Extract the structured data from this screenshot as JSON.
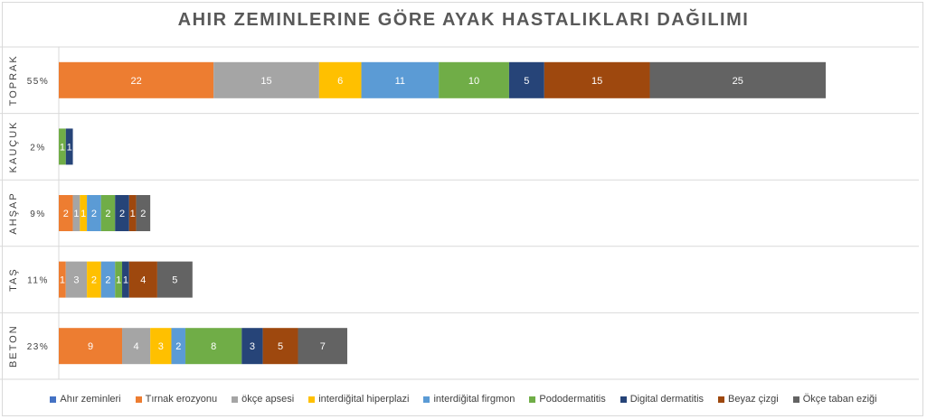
{
  "chart_data": {
    "type": "bar",
    "orientation": "horizontal",
    "stacked": true,
    "title": "AHIR ZEMINLERINE GÖRE AYAK HASTALIKLARI DAĞILIMI",
    "categories": [
      "TOPRAK",
      "KAUÇUK",
      "AHŞAP",
      "TAŞ",
      "BETON"
    ],
    "category_percent_labels": [
      "55%",
      "2%",
      "9%",
      "11%",
      "23%"
    ],
    "series": [
      {
        "name": "Ahır zeminleri",
        "color": "#4472c4",
        "values": [
          0,
          0,
          0,
          0,
          0
        ]
      },
      {
        "name": "Tırnak erozyonu",
        "color": "#ed7d31",
        "values": [
          22,
          0,
          2,
          1,
          9
        ]
      },
      {
        "name": "ökçe apsesi",
        "color": "#a5a5a5",
        "values": [
          15,
          0,
          1,
          3,
          4
        ]
      },
      {
        "name": "interdiğital hiperplazi",
        "color": "#ffc000",
        "values": [
          6,
          0,
          1,
          2,
          3
        ]
      },
      {
        "name": "interdiğital firgmon",
        "color": "#5b9bd5",
        "values": [
          11,
          0,
          2,
          2,
          2
        ]
      },
      {
        "name": "Pododermatitis",
        "color": "#70ad47",
        "values": [
          10,
          1,
          2,
          1,
          8
        ]
      },
      {
        "name": "Digital dermatitis",
        "color": "#264478",
        "values": [
          5,
          1,
          2,
          1,
          3
        ]
      },
      {
        "name": "Beyaz çizgi",
        "color": "#9e480e",
        "values": [
          15,
          0,
          1,
          4,
          5
        ]
      },
      {
        "name": "Ökçe taban eziği",
        "color": "#636363",
        "values": [
          25,
          0,
          2,
          5,
          7
        ]
      }
    ],
    "grid": true,
    "legend_position": "bottom"
  }
}
